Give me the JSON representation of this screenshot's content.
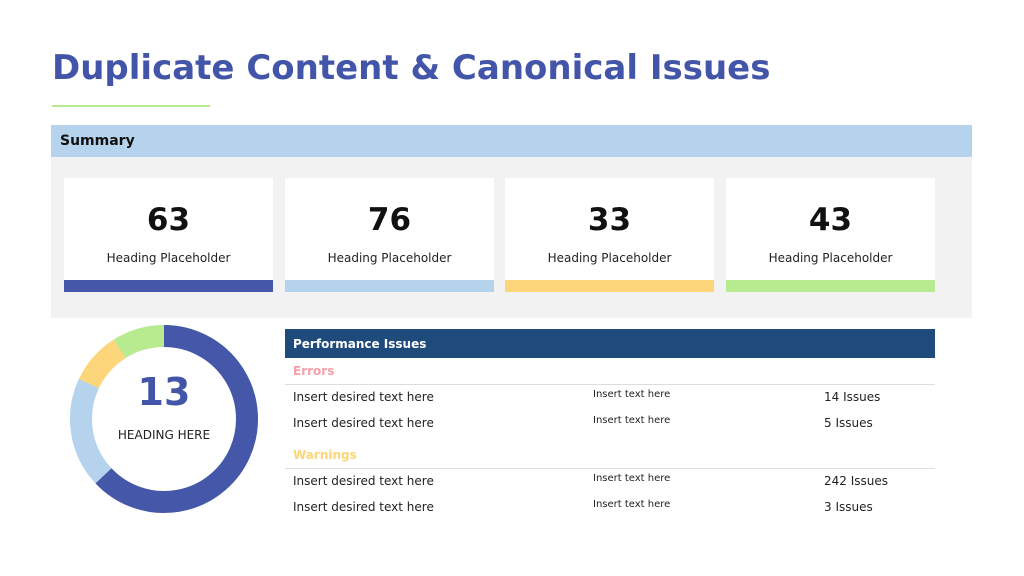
{
  "header": {
    "title": "Duplicate Content & Canonical Issues"
  },
  "summary": {
    "title": "Summary",
    "cards": [
      {
        "value": 63,
        "label": "Heading Placeholder",
        "color": "#4457a8"
      },
      {
        "value": 76,
        "label": "Heading Placeholder",
        "color": "#b5d3ec"
      },
      {
        "value": 33,
        "label": "Heading Placeholder",
        "color": "#fdd57a"
      },
      {
        "value": 43,
        "label": "Heading Placeholder",
        "color": "#b8ea8f"
      }
    ]
  },
  "chart_data": {
    "type": "pie",
    "donut": true,
    "center_value": 13,
    "center_label": "HEADING HERE",
    "values": [
      63,
      19,
      9,
      9
    ],
    "colors": [
      "#4457a8",
      "#b5d3ec",
      "#fdd57a",
      "#b8ea8f"
    ]
  },
  "table": {
    "title": "Performance Issues",
    "sections": [
      {
        "title": "Errors",
        "color": "#f4a0a8",
        "rows": [
          [
            "Insert desired text here",
            "Insert text here",
            "14 Issues"
          ],
          [
            "Insert desired text here",
            "Insert text here",
            "5 Issues"
          ]
        ]
      },
      {
        "title": "Warnings",
        "color": "#fdd57a",
        "rows": [
          [
            "Insert desired text here",
            "Insert text here",
            "242 Issues"
          ],
          [
            "Insert desired text here",
            "Insert text here",
            "3 Issues"
          ]
        ]
      }
    ]
  }
}
